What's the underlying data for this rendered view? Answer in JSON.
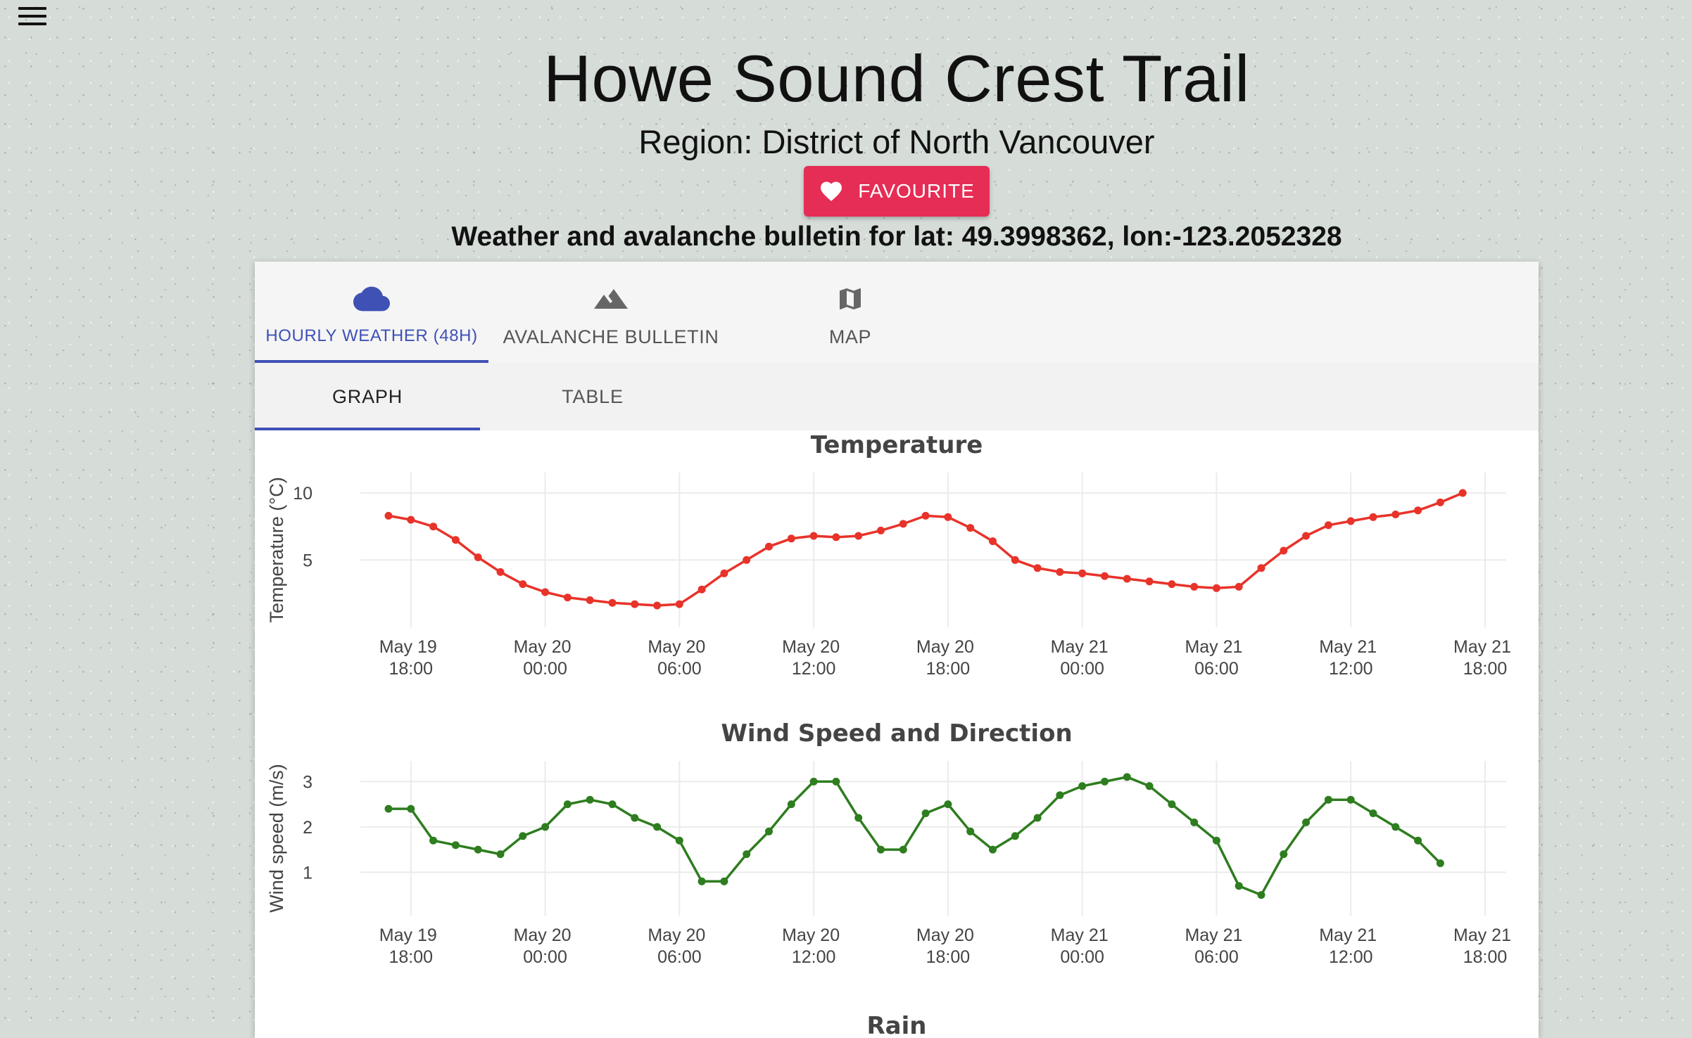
{
  "header": {
    "title": "Howe Sound Crest Trail",
    "region": "Region: District of North Vancouver",
    "favourite_label": "FAVOURITE",
    "bulletin": "Weather and avalanche bulletin for lat: 49.3998362, lon:-123.2052328"
  },
  "icons": {
    "menu": "menu-icon",
    "favourite": "heart-icon",
    "hourly": "cloud-icon",
    "avalanche": "mountain-icon",
    "map": "map-icon"
  },
  "tabs": [
    {
      "label": "HOURLY WEATHER (48H)",
      "active": true
    },
    {
      "label": "AVALANCHE BULLETIN",
      "active": false
    },
    {
      "label": "MAP",
      "active": false
    }
  ],
  "subtabs": [
    {
      "label": "GRAPH",
      "active": true
    },
    {
      "label": "TABLE",
      "active": false
    }
  ],
  "colors": {
    "accent": "#3f51b5",
    "favourite": "#e52d55",
    "temperature": "#e8332a",
    "wind": "#2e7d1f"
  },
  "chart_data": [
    {
      "type": "line",
      "title": "Temperature",
      "ylabel": "Temperature (°C)",
      "xlabel": "",
      "x_ticks": [
        "May 19 18:00",
        "May 20 00:00",
        "May 20 06:00",
        "May 20 12:00",
        "May 20 18:00",
        "May 21 00:00",
        "May 21 06:00",
        "May 21 12:00",
        "May 21 18:00"
      ],
      "x_range": [
        "2023-05-19 17:00",
        "2023-05-21 18:00"
      ],
      "y_ticks": [
        5,
        10
      ],
      "ylim": [
        0.5,
        11
      ],
      "grid": true,
      "series": [
        {
          "x_start": "2023-05-19 17:00",
          "x_step_hours": 1,
          "values": [
            8.3,
            8.0,
            7.5,
            6.5,
            5.2,
            4.1,
            3.2,
            2.6,
            2.2,
            2.0,
            1.8,
            1.7,
            1.6,
            1.7,
            2.8,
            4.0,
            5.0,
            6.0,
            6.6,
            6.8,
            6.7,
            6.8,
            7.2,
            7.7,
            8.3,
            8.2,
            7.4,
            6.4,
            5.0,
            4.4,
            4.1,
            4.0,
            3.8,
            3.6,
            3.4,
            3.2,
            3.0,
            2.9,
            3.0,
            4.4,
            5.7,
            6.8,
            7.6,
            7.9,
            8.2,
            8.4,
            8.7,
            9.3,
            10.0
          ]
        }
      ]
    },
    {
      "type": "line",
      "title": "Wind Speed and Direction",
      "ylabel": "Wind speed (m/s)",
      "xlabel": "",
      "x_ticks": [
        "May 19 18:00",
        "May 20 00:00",
        "May 20 06:00",
        "May 20 12:00",
        "May 20 18:00",
        "May 21 00:00",
        "May 21 06:00",
        "May 21 12:00",
        "May 21 18:00"
      ],
      "x_range": [
        "2023-05-19 17:00",
        "2023-05-21 18:00"
      ],
      "y_ticks": [
        1,
        2,
        3
      ],
      "ylim": [
        0.2,
        3.3
      ],
      "grid": true,
      "series": [
        {
          "x_start": "2023-05-19 17:00",
          "x_step_hours": 1,
          "values": [
            2.4,
            2.4,
            1.7,
            1.6,
            1.5,
            1.4,
            1.8,
            2.0,
            2.5,
            2.6,
            2.5,
            2.2,
            2.0,
            1.7,
            0.8,
            0.8,
            1.4,
            1.9,
            2.5,
            3.0,
            3.0,
            2.2,
            1.5,
            1.5,
            2.3,
            2.5,
            1.9,
            1.5,
            1.8,
            2.2,
            2.7,
            2.9,
            3.0,
            3.1,
            2.9,
            2.5,
            2.1,
            1.7,
            0.7,
            0.5,
            1.4,
            2.1,
            2.6,
            2.6,
            2.3,
            2.0,
            1.7,
            1.2
          ]
        }
      ]
    },
    {
      "type": "bar",
      "title": "Rain"
    }
  ]
}
